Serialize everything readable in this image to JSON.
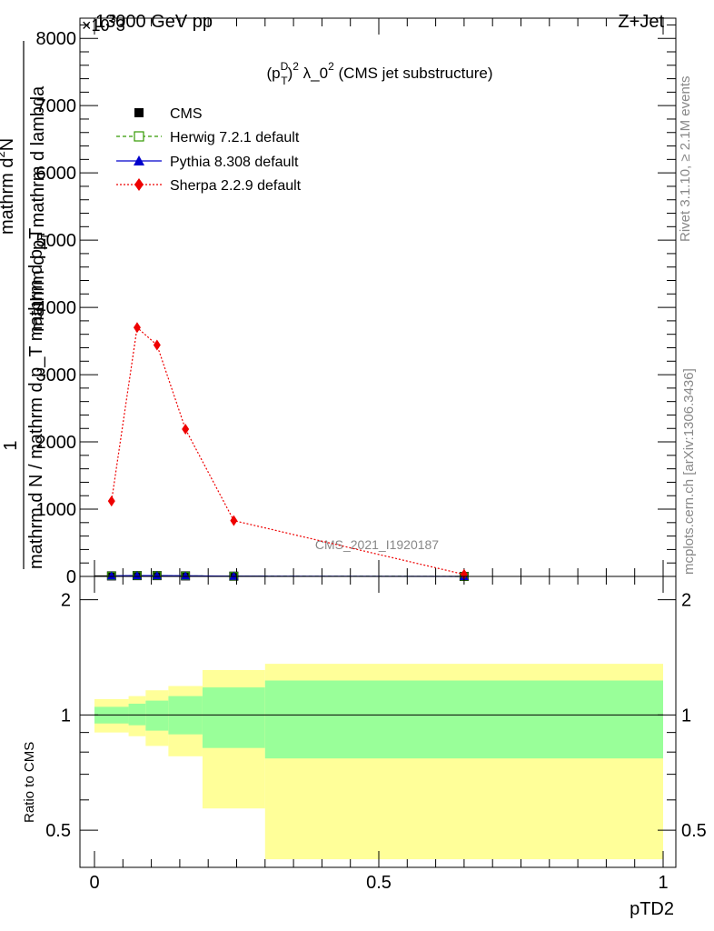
{
  "header": {
    "energy_label": "13000 GeV pp",
    "process_label": "Z+Jet",
    "exponent_label": "×10",
    "exponent_sup": "3",
    "exponent_residue": "3"
  },
  "side": {
    "rivet_label": "Rivet 3.1.10, ≥ 2.1M events",
    "mcplots_label": "mcplots.cern.ch [arXiv:1306.3436]"
  },
  "watermark": "CMS_2021_I1920187",
  "colors": {
    "cms": "#000000",
    "herwig": "#339900",
    "pythia": "#0000cc",
    "sherpa": "#ee0000",
    "band_inner": "#99ff99",
    "band_outer": "#ffff99"
  },
  "chart_data": [
    {
      "type": "line",
      "title": {
        "base": "(p",
        "sup1": "D",
        "sub1": "T",
        "mid": ")",
        "sup2": "2",
        "tail": " λ_0",
        "sup3": "2",
        "end": " (CMS jet substructure)"
      },
      "ylabel": {
        "line1": "1",
        "line2": "mathrm d N / mathrm d p_T mathrm d p_T",
        "line3_a": "mathrm d",
        "line3_b": "2",
        "line3_c": "N",
        "line4": "mathrm d p",
        "line4_sub": "T",
        "line4_tail": " mathrm d lambda"
      },
      "xlim": [
        0,
        1
      ],
      "ylim": [
        0,
        8300
      ],
      "y_ticks": [
        0,
        1000,
        2000,
        3000,
        4000,
        5000,
        6000,
        7000,
        8000
      ],
      "y_tick_labels": [
        "0",
        "1000",
        "2000",
        "3000",
        "4000",
        "5000",
        "6000",
        "7000",
        "8000"
      ],
      "legend_placement": "top-left",
      "legend": [
        {
          "key": "cms",
          "label": "CMS"
        },
        {
          "key": "herwig",
          "label": "Herwig 7.2.1 default"
        },
        {
          "key": "pythia",
          "label": "Pythia 8.308 default"
        },
        {
          "key": "sherpa",
          "label": "Sherpa 2.2.9 default"
        }
      ],
      "bin_edges": [
        0.0,
        0.06,
        0.09,
        0.13,
        0.19,
        0.3,
        1.0
      ],
      "series": [
        {
          "name": "CMS",
          "key": "cms",
          "x": [
            0.03,
            0.075,
            0.11,
            0.16,
            0.245,
            0.65
          ],
          "values": [
            8,
            12,
            12,
            8,
            4,
            0.3
          ]
        },
        {
          "name": "Herwig 7.2.1 default",
          "key": "herwig",
          "x": [
            0.03,
            0.075,
            0.11,
            0.16,
            0.245,
            0.65
          ],
          "values": [
            8,
            12,
            12,
            8,
            4,
            0.3
          ]
        },
        {
          "name": "Pythia 8.308 default",
          "key": "pythia",
          "x": [
            0.03,
            0.075,
            0.11,
            0.16,
            0.245,
            0.65
          ],
          "values": [
            8,
            12,
            12,
            8,
            4,
            0.3
          ]
        },
        {
          "name": "Sherpa 2.2.9 default",
          "key": "sherpa",
          "x": [
            0.03,
            0.075,
            0.11,
            0.16,
            0.245,
            0.65
          ],
          "values": [
            1120,
            3700,
            3440,
            2190,
            830,
            30
          ]
        }
      ]
    },
    {
      "type": "area",
      "ylabel": "Ratio to CMS",
      "xlabel": "pTD2",
      "xlim": [
        0,
        1
      ],
      "ylim": [
        0.4,
        2.3
      ],
      "x_ticks": [
        0,
        0.5,
        1
      ],
      "x_tick_labels": [
        "0",
        "0.5",
        "1"
      ],
      "y_ticks": [
        0.5,
        1,
        2
      ],
      "y_tick_labels": [
        "0.5",
        "1",
        "2"
      ],
      "bin_edges": [
        0.0,
        0.06,
        0.09,
        0.13,
        0.19,
        0.3,
        1.0
      ],
      "bands": [
        {
          "name": "inner",
          "lo": [
            0.95,
            0.94,
            0.91,
            0.89,
            0.82,
            0.77
          ],
          "hi": [
            1.05,
            1.07,
            1.09,
            1.12,
            1.18,
            1.23
          ]
        },
        {
          "name": "outer",
          "lo": [
            0.9,
            0.88,
            0.83,
            0.78,
            0.57,
            0.42
          ],
          "hi": [
            1.1,
            1.12,
            1.16,
            1.19,
            1.31,
            1.36
          ]
        }
      ],
      "reference": 1
    }
  ]
}
